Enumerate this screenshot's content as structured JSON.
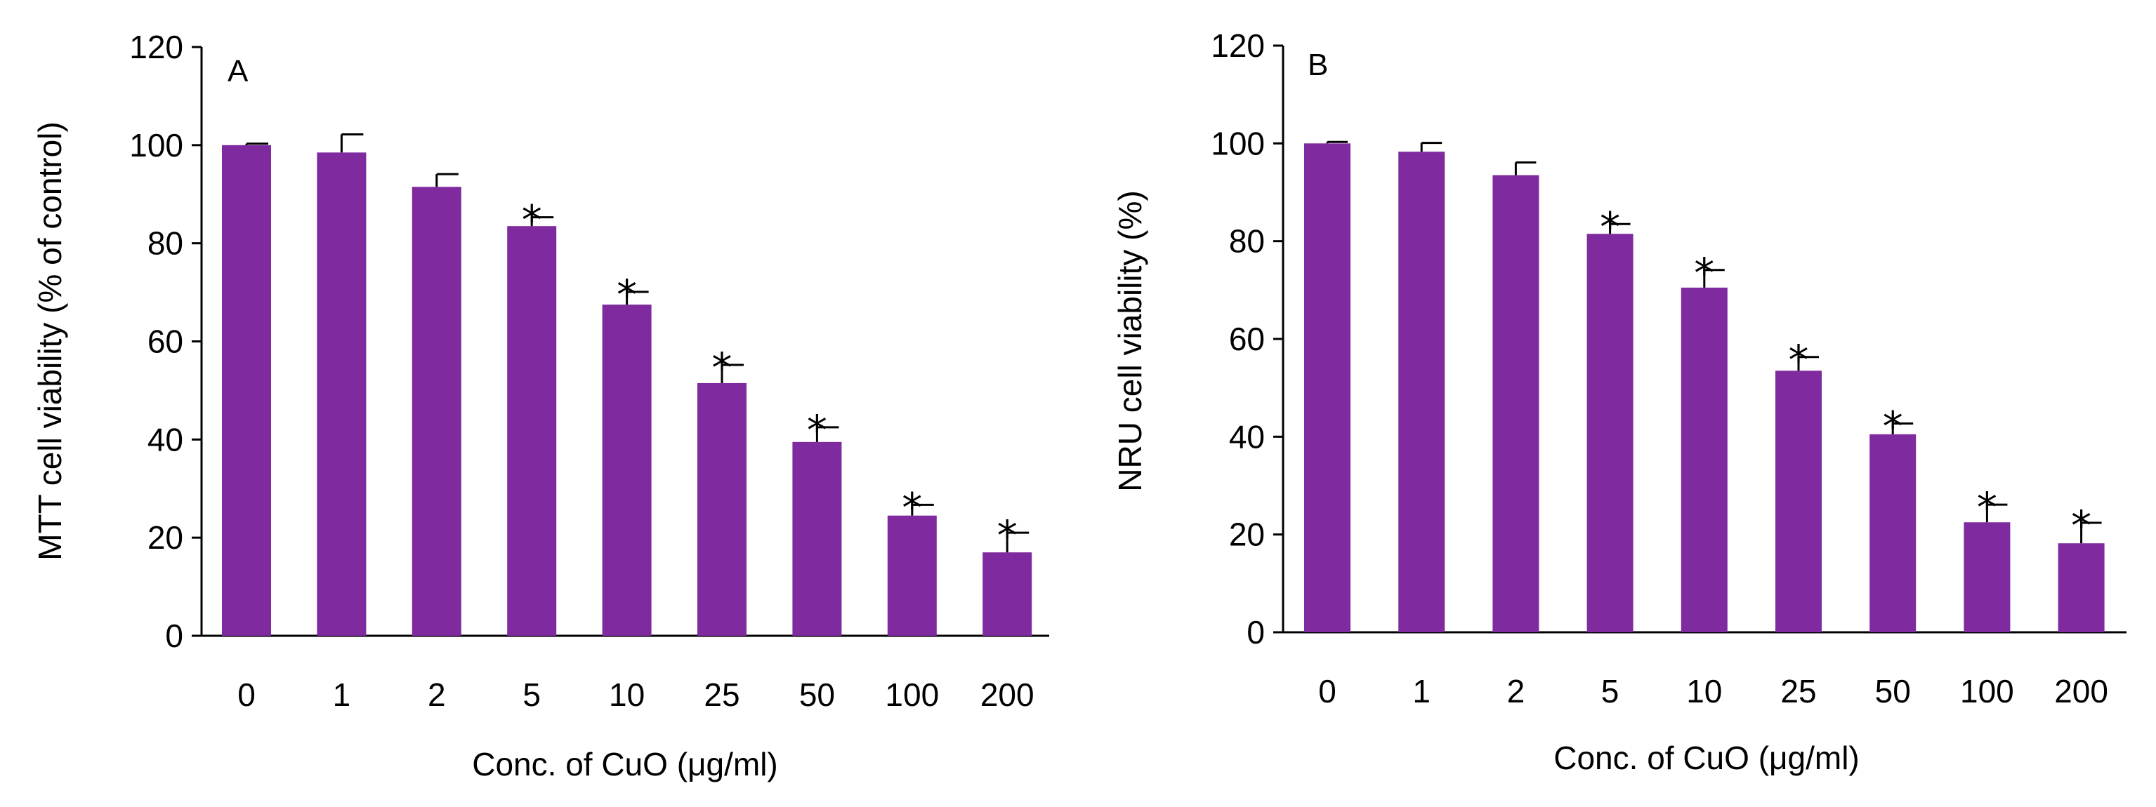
{
  "colors": {
    "bar": "#7f2b9f",
    "axis": "#000000"
  },
  "chart_data": [
    {
      "type": "bar",
      "panel_label": "A",
      "categories": [
        "0",
        "1",
        "2",
        "5",
        "10",
        "25",
        "50",
        "100",
        "200"
      ],
      "values": [
        100,
        98.5,
        91.5,
        83.5,
        67.5,
        51.5,
        39.5,
        24.5,
        17
      ],
      "errors": [
        0.3,
        3.7,
        2.6,
        1.8,
        2.6,
        3.7,
        3.0,
        2.2,
        4.0
      ],
      "significant": [
        false,
        false,
        false,
        true,
        true,
        true,
        true,
        true,
        true
      ],
      "significance_marker": "*",
      "xlabel": "Conc. of CuO (μg/ml)",
      "ylabel": "MTT cell viability (% of control)",
      "ylim": [
        0,
        120
      ],
      "yticks": [
        "0",
        "20",
        "40",
        "60",
        "80",
        "100",
        "120"
      ]
    },
    {
      "type": "bar",
      "panel_label": "B",
      "categories": [
        "0",
        "1",
        "2",
        "5",
        "10",
        "25",
        "50",
        "100",
        "200"
      ],
      "values": [
        100,
        98.3,
        93.5,
        81.5,
        70.5,
        53.5,
        40.5,
        22.5,
        18.2
      ],
      "errors": [
        0.3,
        1.8,
        2.6,
        2.0,
        3.6,
        2.8,
        2.2,
        3.6,
        4.2
      ],
      "significant": [
        false,
        false,
        false,
        true,
        true,
        true,
        true,
        true,
        true
      ],
      "significance_marker": "*",
      "xlabel": "Conc. of CuO (μg/ml)",
      "ylabel": "NRU cell viability (%)",
      "ylim": [
        0,
        120
      ],
      "yticks": [
        "0",
        "20",
        "40",
        "60",
        "80",
        "100",
        "120"
      ]
    }
  ]
}
